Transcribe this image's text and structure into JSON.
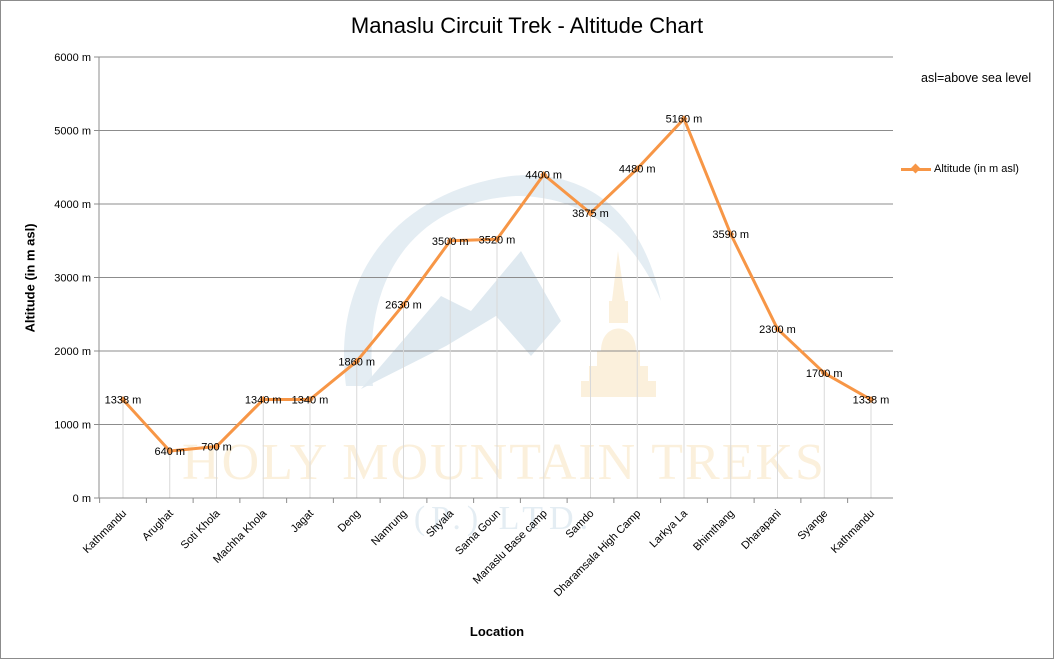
{
  "chart_data": {
    "type": "line",
    "title": "Manaslu Circuit Trek - Altitude Chart",
    "xlabel": "Location",
    "ylabel": "Altitude (in m asl)",
    "ylim": [
      0,
      6000
    ],
    "yticks": [
      0,
      1000,
      2000,
      3000,
      4000,
      5000,
      6000
    ],
    "ytick_labels": [
      "0 m",
      "1000 m",
      "2000 m",
      "3000 m",
      "4000 m",
      "5000 m",
      "6000 m"
    ],
    "categories": [
      "Kathmandu",
      "Arughat",
      "Soti Khola",
      "Machha Khola",
      "Jagat",
      "Deng",
      "Namrung",
      "Shyala",
      "Sama Goun",
      "Manaslu Base camp",
      "Samdo",
      "Dharamsala High Camp",
      "Larkya La",
      "Bhimthang",
      "Dharapani",
      "Syange",
      "Kathmandu"
    ],
    "series": [
      {
        "name": "Altitude (in m asl)",
        "color": "#f79646",
        "marker": "diamond",
        "values": [
          1338,
          640,
          700,
          1340,
          1340,
          1860,
          2630,
          3500,
          3520,
          4400,
          3875,
          4480,
          5160,
          3590,
          2300,
          1700,
          1338
        ],
        "data_labels": [
          "1338 m",
          "640 m",
          "700 m",
          "1340 m",
          "1340 m",
          "1860 m",
          "2630 m",
          "3500 m",
          "3520 m",
          "4400 m",
          "3875 m",
          "4480 m",
          "5160 m",
          "3590 m",
          "2300 m",
          "1700 m",
          "1338 m"
        ]
      }
    ],
    "grid": "horizontal",
    "legend_position": "right",
    "annotation": "asl=above sea level"
  },
  "watermark": {
    "name": "HOLY MOUNTAIN TREKS",
    "sub": "(P.) LTD."
  }
}
